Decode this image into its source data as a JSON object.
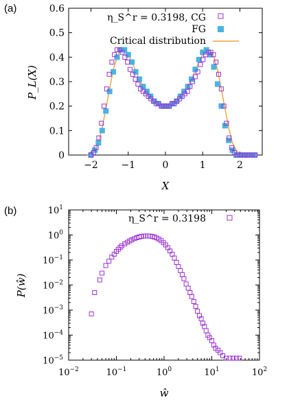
{
  "chart_data": [
    {
      "panel_label": "(a)",
      "type": "scatter",
      "xlabel": "X",
      "ylabel": "P_L(X)",
      "xlim": [
        -2.6,
        2.6
      ],
      "ylim": [
        0,
        0.6
      ],
      "xticks": [
        -2,
        -1,
        0,
        1,
        2
      ],
      "xtick_labels": [
        "−2",
        "−1",
        "0",
        "1",
        "2"
      ],
      "yticks": [
        0,
        0.1,
        0.2,
        0.3,
        0.4,
        0.5,
        0.6
      ],
      "ytick_labels": [
        "0",
        "0.1",
        "0.2",
        "0.3",
        "0.4",
        "0.5",
        "0.6"
      ],
      "legend_position": "top-right",
      "series": [
        {
          "name": "η_S^r = 0.3198, CG",
          "marker": "open-square",
          "color": "#9b30d0",
          "x": [
            -2.0,
            -1.93,
            -1.86,
            -1.79,
            -1.72,
            -1.65,
            -1.58,
            -1.51,
            -1.44,
            -1.37,
            -1.3,
            -1.23,
            -1.16,
            -1.09,
            -1.02,
            -0.95,
            -0.88,
            -0.81,
            -0.74,
            -0.67,
            -0.6,
            -0.53,
            -0.46,
            -0.39,
            -0.32,
            -0.25,
            -0.18,
            -0.11,
            -0.04,
            0.03,
            0.1,
            0.17,
            0.24,
            0.31,
            0.38,
            0.45,
            0.52,
            0.59,
            0.66,
            0.73,
            0.8,
            0.87,
            0.94,
            1.01,
            1.08,
            1.15,
            1.22,
            1.29,
            1.36,
            1.43,
            1.5,
            1.57,
            1.64,
            1.71,
            1.78,
            1.85,
            1.92,
            1.99,
            2.06,
            2.13,
            2.2,
            2.27,
            2.34,
            2.41
          ],
          "y": [
            0.0,
            0.01,
            0.03,
            0.07,
            0.13,
            0.2,
            0.27,
            0.33,
            0.38,
            0.41,
            0.43,
            0.43,
            0.42,
            0.4,
            0.38,
            0.35,
            0.33,
            0.31,
            0.29,
            0.27,
            0.26,
            0.25,
            0.24,
            0.23,
            0.22,
            0.21,
            0.21,
            0.2,
            0.2,
            0.2,
            0.2,
            0.21,
            0.21,
            0.22,
            0.23,
            0.24,
            0.25,
            0.26,
            0.28,
            0.3,
            0.32,
            0.34,
            0.37,
            0.39,
            0.41,
            0.42,
            0.42,
            0.41,
            0.38,
            0.33,
            0.27,
            0.2,
            0.13,
            0.07,
            0.03,
            0.01,
            0.0,
            0.0,
            0.0,
            0.0,
            0.0,
            0.0,
            0.0,
            0.0
          ]
        },
        {
          "name": "FG",
          "marker": "filled-square",
          "color": "#4bb3e0",
          "x": [
            -2.0,
            -1.9,
            -1.8,
            -1.7,
            -1.6,
            -1.5,
            -1.4,
            -1.3,
            -1.2,
            -1.1,
            -1.0,
            -0.9,
            -0.8,
            -0.7,
            -0.6,
            -0.5,
            -0.4,
            -0.3,
            -0.2,
            -0.1,
            0.0,
            0.1,
            0.2,
            0.3,
            0.4,
            0.5,
            0.6,
            0.7,
            0.8,
            0.9,
            1.0,
            1.1,
            1.2,
            1.3,
            1.4,
            1.5,
            1.6,
            1.7,
            1.8,
            1.9,
            2.0,
            2.1,
            2.2,
            2.3,
            2.4
          ],
          "y": [
            0.0,
            0.02,
            0.05,
            0.1,
            0.18,
            0.26,
            0.34,
            0.4,
            0.43,
            0.43,
            0.41,
            0.38,
            0.34,
            0.31,
            0.28,
            0.26,
            0.24,
            0.22,
            0.21,
            0.2,
            0.2,
            0.2,
            0.21,
            0.22,
            0.24,
            0.26,
            0.28,
            0.31,
            0.35,
            0.39,
            0.42,
            0.43,
            0.41,
            0.36,
            0.29,
            0.2,
            0.12,
            0.06,
            0.02,
            0.0,
            0.0,
            0.0,
            0.0,
            0.0,
            0.0
          ]
        },
        {
          "name": "Critical distribution",
          "marker": "line",
          "color": "#e8a33d",
          "x": [
            -2.1,
            -2.0,
            -1.9,
            -1.8,
            -1.7,
            -1.6,
            -1.5,
            -1.4,
            -1.3,
            -1.2,
            -1.1,
            -1.0,
            -0.9,
            -0.8,
            -0.7,
            -0.6,
            -0.5,
            -0.4,
            -0.3,
            -0.2,
            -0.1,
            0.0,
            0.1,
            0.2,
            0.3,
            0.4,
            0.5,
            0.6,
            0.7,
            0.8,
            0.9,
            1.0,
            1.1,
            1.2,
            1.3,
            1.4,
            1.5,
            1.6,
            1.7,
            1.8,
            1.9,
            2.0,
            2.1
          ],
          "y": [
            0.0,
            0.004,
            0.02,
            0.05,
            0.11,
            0.19,
            0.27,
            0.35,
            0.4,
            0.43,
            0.43,
            0.41,
            0.38,
            0.345,
            0.31,
            0.28,
            0.26,
            0.24,
            0.22,
            0.21,
            0.2,
            0.2,
            0.2,
            0.21,
            0.22,
            0.24,
            0.26,
            0.28,
            0.31,
            0.345,
            0.38,
            0.41,
            0.43,
            0.43,
            0.4,
            0.35,
            0.27,
            0.19,
            0.11,
            0.05,
            0.02,
            0.004,
            0.0
          ]
        }
      ]
    },
    {
      "panel_label": "(b)",
      "type": "scatter",
      "xlabel": "ŵ",
      "ylabel": "P(ŵ)",
      "xscale": "log",
      "yscale": "log",
      "xlim": [
        0.01,
        100
      ],
      "ylim": [
        1e-05,
        10
      ],
      "xtick_labels": [
        [
          "10",
          "−2"
        ],
        [
          "10",
          "−1"
        ],
        [
          "10",
          "0"
        ],
        [
          "10",
          "1"
        ],
        [
          "10",
          "2"
        ]
      ],
      "ytick_labels": [
        [
          "10",
          "−5"
        ],
        [
          "10",
          "−4"
        ],
        [
          "10",
          "−3"
        ],
        [
          "10",
          "−2"
        ],
        [
          "10",
          "−1"
        ],
        [
          "10",
          "0"
        ],
        [
          "10",
          "1"
        ]
      ],
      "legend_position": "top-right",
      "series": [
        {
          "name": "η_S^r = 0.3198",
          "marker": "open-square",
          "color": "#9b30d0",
          "x": [
            0.03,
            0.035,
            0.045,
            0.05,
            0.06,
            0.07,
            0.08,
            0.09,
            0.1,
            0.11,
            0.12,
            0.13,
            0.15,
            0.17,
            0.19,
            0.21,
            0.24,
            0.27,
            0.3,
            0.33,
            0.37,
            0.41,
            0.46,
            0.51,
            0.57,
            0.63,
            0.7,
            0.78,
            0.87,
            0.97,
            1.08,
            1.2,
            1.33,
            1.48,
            1.64,
            1.82,
            2.0,
            2.2,
            2.4,
            2.6,
            2.9,
            3.2,
            3.5,
            3.8,
            4.2,
            4.6,
            5.0,
            5.5,
            6.0,
            6.5,
            7.0,
            7.6,
            8.3,
            9.0,
            10.0,
            11.0,
            12.0,
            13.5,
            15.0,
            17.0,
            20.0,
            24.0,
            28.0,
            33.0,
            38.0
          ],
          "y": [
            0.0007,
            0.005,
            0.016,
            0.03,
            0.06,
            0.09,
            0.13,
            0.17,
            0.22,
            0.27,
            0.32,
            0.37,
            0.44,
            0.51,
            0.58,
            0.64,
            0.72,
            0.78,
            0.83,
            0.87,
            0.9,
            0.91,
            0.91,
            0.9,
            0.87,
            0.82,
            0.76,
            0.68,
            0.59,
            0.49,
            0.4,
            0.31,
            0.23,
            0.17,
            0.12,
            0.08,
            0.055,
            0.038,
            0.026,
            0.018,
            0.011,
            0.0075,
            0.005,
            0.0035,
            0.0022,
            0.0014,
            0.0009,
            0.0006,
            0.00045,
            0.0003,
            0.00022,
            0.00015,
            0.0001,
            8e-05,
            6e-05,
            4e-05,
            3e-05,
            2.5e-05,
            2e-05,
            1.5e-05,
            1.2e-05,
            1.2e-05,
            1.2e-05,
            1.2e-05,
            1.2e-05
          ]
        }
      ]
    }
  ]
}
